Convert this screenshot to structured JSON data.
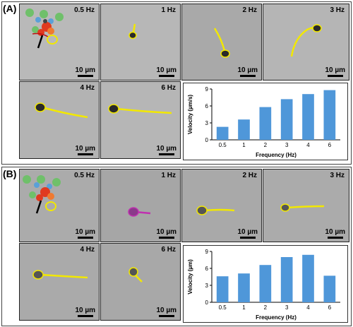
{
  "panel_a": {
    "letter": "(A)",
    "scale_text": "10 µm",
    "frequencies": [
      "0.5 Hz",
      "1 Hz",
      "2 Hz",
      "3 Hz",
      "4 Hz",
      "6 Hz"
    ],
    "colors": {
      "trajectory": "#f2e800",
      "background": "#b8b8b8"
    }
  },
  "panel_b": {
    "letter": "(B)",
    "scale_text": "10 µm",
    "frequencies": [
      "0.5 Hz",
      "1 Hz",
      "2 Hz",
      "3 Hz",
      "4 Hz",
      "6 Hz"
    ],
    "colors": {
      "trajectory": "#f2e800",
      "trajectory_1hz": "#c030b0",
      "background": "#a9a9a9"
    }
  },
  "chart_data": [
    {
      "type": "bar",
      "categories": [
        "0.5",
        "1",
        "2",
        "3",
        "4",
        "6"
      ],
      "values": [
        2.3,
        3.6,
        5.8,
        7.2,
        8.1,
        8.8
      ],
      "xlabel": "Frequency (Hz)",
      "ylabel": "Velocity (µm/s)",
      "ylim": [
        0,
        9
      ],
      "yticks": [
        "0",
        "3",
        "6",
        "9"
      ],
      "bar_color": "#4f97d9",
      "grid": false
    },
    {
      "type": "bar",
      "categories": [
        "0.5",
        "1",
        "2",
        "3",
        "4",
        "6"
      ],
      "values": [
        4.6,
        5.1,
        6.6,
        8.0,
        8.4,
        4.7
      ],
      "xlabel": "Frequency (Hz)",
      "ylabel": "Velocity (µm)",
      "ylim": [
        0,
        9
      ],
      "yticks": [
        "0",
        "3",
        "6",
        "9"
      ],
      "bar_color": "#4f97d9",
      "grid": false
    }
  ]
}
